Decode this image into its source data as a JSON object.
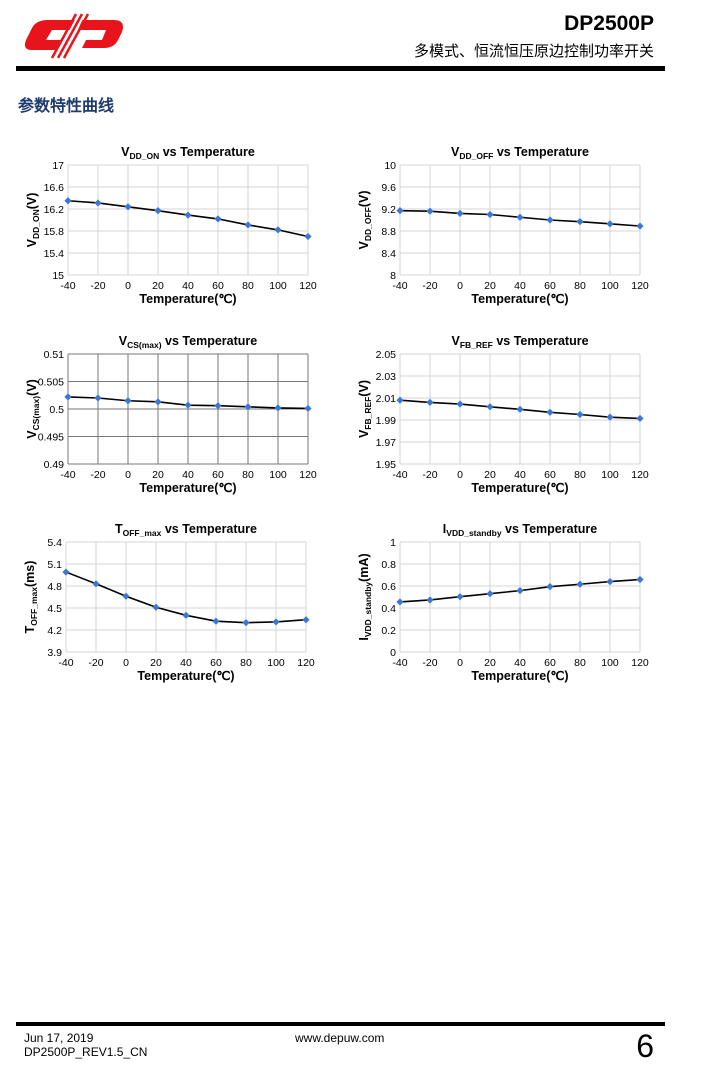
{
  "header": {
    "title": "DP2500P",
    "subtitle": "多模式、恒流恒压原边控制功率开关",
    "logo_color": "#e8141c"
  },
  "section_title": "参数特性曲线",
  "footer": {
    "date": "Jun 17, 2019",
    "revision": "DP2500P_REV1.5_CN",
    "website": "www.depuw.com",
    "page": "6"
  },
  "colors": {
    "marker": "#3a78d4",
    "line": "#000000"
  },
  "chart_data": [
    {
      "type": "line",
      "title": {
        "main": "V",
        "sub": "DD_ON",
        "rest": " vs Temperature"
      },
      "ylabel": {
        "main": "V",
        "sub": "DD_ON",
        "rest": "(V)"
      },
      "xlabel": "Temperature(℃)",
      "x": [
        -40,
        -20,
        0,
        20,
        40,
        60,
        80,
        100,
        120
      ],
      "y": [
        16.35,
        16.31,
        16.24,
        16.17,
        16.09,
        16.02,
        15.91,
        15.82,
        15.7
      ],
      "xlim": [
        -40,
        120
      ],
      "ylim": [
        15,
        17
      ],
      "xticks": [
        "-40",
        "-20",
        "0",
        "20",
        "40",
        "60",
        "80",
        "100",
        "120"
      ],
      "yticks": [
        "15",
        "15.4",
        "15.8",
        "16.2",
        "16.6",
        "17"
      ],
      "grid": true,
      "grid_color": "#d4d4d4"
    },
    {
      "type": "line",
      "title": {
        "main": "V",
        "sub": "DD_OFF",
        "rest": " vs Temperature"
      },
      "ylabel": {
        "main": "V",
        "sub": "DD_OFF",
        "rest": "(V)"
      },
      "xlabel": "Temperature(℃)",
      "x": [
        -40,
        -20,
        0,
        20,
        40,
        60,
        80,
        100,
        120
      ],
      "y": [
        9.17,
        9.16,
        9.12,
        9.1,
        9.05,
        9.0,
        8.97,
        8.93,
        8.89
      ],
      "xlim": [
        -40,
        120
      ],
      "ylim": [
        8,
        10
      ],
      "xticks": [
        "-40",
        "-20",
        "0",
        "20",
        "40",
        "60",
        "80",
        "100",
        "120"
      ],
      "yticks": [
        "8",
        "8.4",
        "8.8",
        "9.2",
        "9.6",
        "10"
      ],
      "grid": true,
      "grid_color": "#d4d4d4"
    },
    {
      "type": "line",
      "title": {
        "main": "V",
        "sub": "CS(max)",
        "rest": " vs Temperature"
      },
      "ylabel": {
        "main": "V",
        "sub": "CS(max)",
        "rest": "(V)"
      },
      "xlabel": "Temperature(℃)",
      "x": [
        -40,
        -20,
        0,
        20,
        40,
        60,
        80,
        100,
        120
      ],
      "y": [
        0.5022,
        0.502,
        0.5015,
        0.5013,
        0.5007,
        0.5006,
        0.5004,
        0.5002,
        0.5001
      ],
      "xlim": [
        -40,
        120
      ],
      "ylim": [
        0.49,
        0.51
      ],
      "xticks": [
        "-40",
        "-20",
        "0",
        "20",
        "40",
        "60",
        "80",
        "100",
        "120"
      ],
      "yticks": [
        "0.49",
        "0.495",
        "0.5",
        "0.505",
        "0.51"
      ],
      "grid": true,
      "grid_color": "#777777"
    },
    {
      "type": "line",
      "title": {
        "main": "V",
        "sub": "FB_REF",
        "rest": " vs Temperature"
      },
      "ylabel": {
        "main": "V",
        "sub": "FB_REF",
        "rest": "(V)"
      },
      "xlabel": "Temperature(℃)",
      "x": [
        -40,
        -20,
        0,
        20,
        40,
        60,
        80,
        100,
        120
      ],
      "y": [
        2.008,
        2.006,
        2.0045,
        2.002,
        1.9997,
        1.997,
        1.995,
        1.9926,
        1.9914
      ],
      "xlim": [
        -40,
        120
      ],
      "ylim": [
        1.95,
        2.05
      ],
      "xticks": [
        "-40",
        "-20",
        "0",
        "20",
        "40",
        "60",
        "80",
        "100",
        "120"
      ],
      "yticks": [
        "1.95",
        "1.97",
        "1.99",
        "2.01",
        "2.03",
        "2.05"
      ],
      "grid": true,
      "grid_color": "#d4d4d4"
    },
    {
      "type": "line",
      "title": {
        "main": "T",
        "sub": "OFF_max",
        "rest": " vs Temperature"
      },
      "ylabel": {
        "main": "T",
        "sub": "OFF_max",
        "rest": "(ms)"
      },
      "xlabel": "Temperature(℃)",
      "x": [
        -40,
        -20,
        0,
        20,
        40,
        60,
        80,
        100,
        120
      ],
      "y": [
        4.99,
        4.83,
        4.66,
        4.51,
        4.4,
        4.32,
        4.3,
        4.31,
        4.34
      ],
      "xlim": [
        -40,
        120
      ],
      "ylim": [
        3.9,
        5.4
      ],
      "xticks": [
        "-40",
        "-20",
        "0",
        "20",
        "40",
        "60",
        "80",
        "100",
        "120"
      ],
      "yticks": [
        "3.9",
        "4.2",
        "4.5",
        "4.8",
        "5.1",
        "5.4"
      ],
      "grid": true,
      "grid_color": "#d4d4d4"
    },
    {
      "type": "line",
      "title": {
        "main": "I",
        "sub": "VDD_standby",
        "rest": " vs Temperature"
      },
      "ylabel": {
        "main": "I",
        "sub": "VDD_standby",
        "rest": "(mA)"
      },
      "xlabel": "Temperature(℃)",
      "x": [
        -40,
        -20,
        0,
        20,
        40,
        60,
        80,
        100,
        120
      ],
      "y": [
        0.455,
        0.473,
        0.503,
        0.53,
        0.558,
        0.594,
        0.616,
        0.64,
        0.659
      ],
      "xlim": [
        -40,
        120
      ],
      "ylim": [
        0,
        1
      ],
      "xticks": [
        "-40",
        "-20",
        "0",
        "20",
        "40",
        "60",
        "80",
        "100",
        "120"
      ],
      "yticks": [
        "0",
        "0.2",
        "0.4",
        "0.6",
        "0.8",
        "1"
      ],
      "grid": true,
      "grid_color": "#d4d4d4"
    }
  ]
}
